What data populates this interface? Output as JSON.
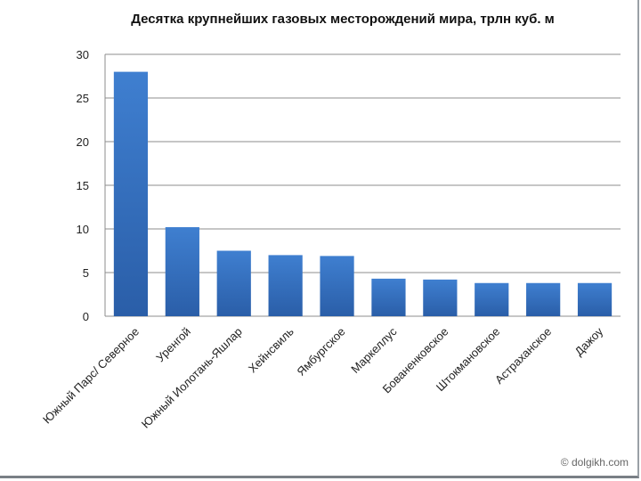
{
  "watermark": "© dolgikh.com",
  "colors": {
    "bar_top": "#3f7fd0",
    "bar_bottom": "#2a5ea8",
    "grid": "#8c8c8c"
  },
  "chart_data": {
    "type": "bar",
    "title": "Десятка крупнейших газовых месторождений мира, трлн куб. м",
    "xlabel": "",
    "ylabel": "",
    "ylim": [
      0,
      30
    ],
    "yticks": [
      0,
      5,
      10,
      15,
      20,
      25,
      30
    ],
    "grid": true,
    "legend": "none",
    "categories": [
      "Южный Парс/ Северное",
      "Уренгой",
      "Южный Иолотань-Яшлар",
      "Хейнсвиль",
      "Ямбургское",
      "Маркеллус",
      "Бованенковское",
      "Штокмановское",
      "Астраханское",
      "Дажоу"
    ],
    "values": [
      28,
      10.2,
      7.5,
      7.0,
      6.9,
      4.3,
      4.2,
      3.8,
      3.8,
      3.8
    ]
  }
}
